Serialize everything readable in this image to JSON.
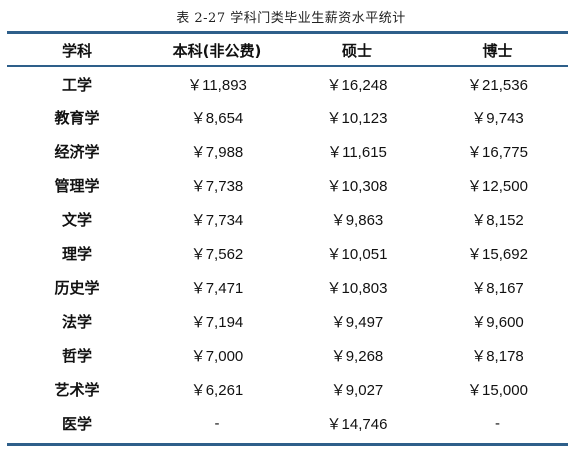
{
  "caption": "表 2-27   学科门类毕业生薪资水平统计",
  "colors": {
    "rule": "#2e5f8a",
    "text": "#111111"
  },
  "headers": [
    "学科",
    "本科(非公费)",
    "硕士",
    "博士"
  ],
  "rows": [
    [
      "工学",
      "￥11,893",
      "￥16,248",
      "￥21,536"
    ],
    [
      "教育学",
      "￥8,654",
      "￥10,123",
      "￥9,743"
    ],
    [
      "经济学",
      "￥7,988",
      "￥11,615",
      "￥16,775"
    ],
    [
      "管理学",
      "￥7,738",
      "￥10,308",
      "￥12,500"
    ],
    [
      "文学",
      "￥7,734",
      "￥9,863",
      "￥8,152"
    ],
    [
      "理学",
      "￥7,562",
      "￥10,051",
      "￥15,692"
    ],
    [
      "历史学",
      "￥7,471",
      "￥10,803",
      "￥8,167"
    ],
    [
      "法学",
      "￥7,194",
      "￥9,497",
      "￥9,600"
    ],
    [
      "哲学",
      "￥7,000",
      "￥9,268",
      "￥8,178"
    ],
    [
      "艺术学",
      "￥6,261",
      "￥9,027",
      "￥15,000"
    ],
    [
      "医学",
      "-",
      "￥14,746",
      "-"
    ]
  ]
}
